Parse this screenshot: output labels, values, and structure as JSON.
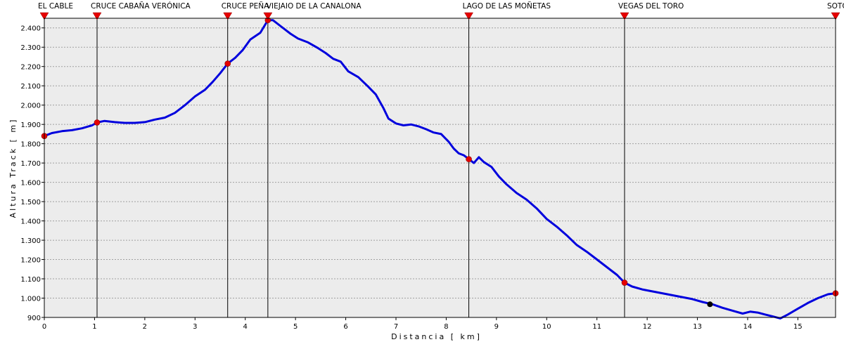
{
  "chart_data": {
    "type": "line",
    "xlabel": "Distancia  [ km]",
    "ylabel": "Altura Track  [ m]",
    "xlim": [
      0,
      15.75
    ],
    "ylim": [
      900,
      2450
    ],
    "x_ticks": [
      0,
      1,
      2,
      3,
      4,
      5,
      6,
      7,
      8,
      9,
      10,
      11,
      12,
      13,
      14,
      15
    ],
    "y_ticks": [
      900,
      1000,
      1100,
      1200,
      1300,
      1400,
      1500,
      1600,
      1700,
      1800,
      1900,
      2000,
      2100,
      2200,
      2300,
      2400
    ],
    "y_tick_labels": [
      "900",
      "1.000",
      "1.100",
      "1.200",
      "1.300",
      "1.400",
      "1.500",
      "1.600",
      "1.700",
      "1.800",
      "1.900",
      "2.000",
      "2.100",
      "2.200",
      "2.300",
      "2.400"
    ],
    "grid": "horizontal",
    "line_color": "#0000dd",
    "marker_color": "#e60000",
    "series": [
      {
        "values": [
          [
            0,
            1840
          ],
          [
            0.15,
            1855
          ],
          [
            0.35,
            1865
          ],
          [
            0.55,
            1870
          ],
          [
            0.75,
            1880
          ],
          [
            0.95,
            1895
          ],
          [
            1.05,
            1910
          ],
          [
            1.2,
            1918
          ],
          [
            1.4,
            1912
          ],
          [
            1.6,
            1908
          ],
          [
            1.8,
            1908
          ],
          [
            2.0,
            1912
          ],
          [
            2.2,
            1925
          ],
          [
            2.4,
            1935
          ],
          [
            2.6,
            1960
          ],
          [
            2.8,
            2000
          ],
          [
            3.0,
            2045
          ],
          [
            3.2,
            2080
          ],
          [
            3.35,
            2120
          ],
          [
            3.5,
            2165
          ],
          [
            3.65,
            2215
          ],
          [
            3.8,
            2245
          ],
          [
            3.95,
            2285
          ],
          [
            4.1,
            2340
          ],
          [
            4.3,
            2375
          ],
          [
            4.45,
            2440
          ],
          [
            4.55,
            2440
          ],
          [
            4.7,
            2410
          ],
          [
            4.9,
            2370
          ],
          [
            5.05,
            2345
          ],
          [
            5.25,
            2325
          ],
          [
            5.45,
            2295
          ],
          [
            5.6,
            2270
          ],
          [
            5.75,
            2240
          ],
          [
            5.9,
            2225
          ],
          [
            6.05,
            2175
          ],
          [
            6.25,
            2145
          ],
          [
            6.45,
            2095
          ],
          [
            6.6,
            2055
          ],
          [
            6.75,
            1985
          ],
          [
            6.85,
            1930
          ],
          [
            7.0,
            1905
          ],
          [
            7.15,
            1895
          ],
          [
            7.3,
            1900
          ],
          [
            7.45,
            1890
          ],
          [
            7.6,
            1875
          ],
          [
            7.75,
            1858
          ],
          [
            7.9,
            1850
          ],
          [
            8.05,
            1810
          ],
          [
            8.15,
            1775
          ],
          [
            8.25,
            1750
          ],
          [
            8.35,
            1740
          ],
          [
            8.45,
            1720
          ],
          [
            8.55,
            1700
          ],
          [
            8.65,
            1730
          ],
          [
            8.75,
            1705
          ],
          [
            8.9,
            1680
          ],
          [
            9.05,
            1630
          ],
          [
            9.2,
            1590
          ],
          [
            9.4,
            1545
          ],
          [
            9.6,
            1510
          ],
          [
            9.8,
            1465
          ],
          [
            10.0,
            1410
          ],
          [
            10.2,
            1370
          ],
          [
            10.4,
            1325
          ],
          [
            10.6,
            1275
          ],
          [
            10.8,
            1240
          ],
          [
            11.0,
            1200
          ],
          [
            11.2,
            1160
          ],
          [
            11.4,
            1120
          ],
          [
            11.55,
            1080
          ],
          [
            11.7,
            1060
          ],
          [
            11.9,
            1045
          ],
          [
            12.1,
            1035
          ],
          [
            12.3,
            1025
          ],
          [
            12.5,
            1015
          ],
          [
            12.7,
            1005
          ],
          [
            12.9,
            995
          ],
          [
            13.1,
            980
          ],
          [
            13.3,
            968
          ],
          [
            13.5,
            950
          ],
          [
            13.7,
            935
          ],
          [
            13.9,
            920
          ],
          [
            14.05,
            930
          ],
          [
            14.2,
            925
          ],
          [
            14.35,
            915
          ],
          [
            14.5,
            905
          ],
          [
            14.65,
            895
          ],
          [
            14.8,
            915
          ],
          [
            15.0,
            945
          ],
          [
            15.2,
            975
          ],
          [
            15.4,
            1000
          ],
          [
            15.6,
            1020
          ],
          [
            15.75,
            1025
          ]
        ]
      }
    ],
    "waypoints": [
      {
        "name": "EL CABLE",
        "x": 0,
        "y": 1840
      },
      {
        "name": "CRUCE CABAÑA VERÓNICA",
        "x": 1.05,
        "y": 1910
      },
      {
        "name": "CRUCE PEÑA",
        "x": 3.65,
        "y": 2215
      },
      {
        "name": "VIEJAIO DE LA CANALONA",
        "x": 4.45,
        "y": 2440
      },
      {
        "name": "LAGO DE LAS MOÑETAS",
        "x": 8.45,
        "y": 1720
      },
      {
        "name": "VEGAS DEL TORO",
        "x": 11.55,
        "y": 1080
      },
      {
        "name": "SOTO",
        "x": 15.75,
        "y": 1025
      }
    ],
    "extra_markers": [
      {
        "x": 13.25,
        "y": 968,
        "color": "#000000"
      }
    ]
  }
}
